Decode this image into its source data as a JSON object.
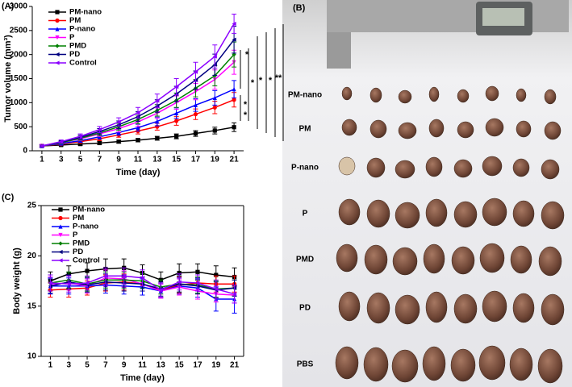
{
  "chart_data": [
    {
      "type": "line",
      "panel_label": "(A)",
      "xlabel": "Time (day)",
      "ylabel": "Tumor volume (mm³)",
      "x": [
        1,
        3,
        5,
        7,
        9,
        11,
        13,
        15,
        17,
        19,
        21
      ],
      "xlim": [
        0,
        22
      ],
      "xticks": [
        1,
        3,
        5,
        7,
        9,
        11,
        13,
        15,
        17,
        19,
        21
      ],
      "ylim": [
        0,
        3000
      ],
      "yticks": [
        0,
        500,
        1000,
        1500,
        2000,
        2500,
        3000
      ],
      "legend": "upper left",
      "series": [
        {
          "name": "PM-nano",
          "color": "#000000",
          "marker": "square",
          "values": [
            100,
            120,
            140,
            160,
            190,
            220,
            260,
            300,
            360,
            420,
            490
          ],
          "errors": [
            20,
            20,
            25,
            30,
            30,
            35,
            40,
            50,
            60,
            70,
            90
          ]
        },
        {
          "name": "PM",
          "color": "#ff0000",
          "marker": "circle",
          "values": [
            100,
            140,
            190,
            250,
            330,
            410,
            500,
            620,
            760,
            900,
            1060
          ],
          "errors": [
            20,
            25,
            30,
            40,
            50,
            60,
            70,
            90,
            110,
            130,
            150
          ]
        },
        {
          "name": "P-nano",
          "color": "#0000ff",
          "marker": "triangle-up",
          "values": [
            100,
            150,
            210,
            290,
            380,
            480,
            610,
            780,
            950,
            1100,
            1280
          ],
          "errors": [
            20,
            25,
            35,
            45,
            55,
            70,
            90,
            110,
            130,
            150,
            180
          ]
        },
        {
          "name": "P",
          "color": "#ff00ff",
          "marker": "triangle-down",
          "values": [
            100,
            170,
            250,
            350,
            460,
            600,
            780,
            1000,
            1230,
            1480,
            1840
          ],
          "errors": [
            20,
            30,
            40,
            55,
            70,
            90,
            110,
            140,
            170,
            200,
            250
          ]
        },
        {
          "name": "PMD",
          "color": "#008000",
          "marker": "diamond",
          "values": [
            100,
            170,
            260,
            370,
            500,
            650,
            840,
            1050,
            1300,
            1560,
            2000
          ],
          "errors": [
            20,
            30,
            40,
            55,
            70,
            90,
            120,
            150,
            180,
            210,
            260
          ]
        },
        {
          "name": "PD",
          "color": "#000080",
          "marker": "triangle-left",
          "values": [
            100,
            180,
            280,
            400,
            540,
            710,
            930,
            1180,
            1470,
            1790,
            2310
          ],
          "errors": [
            20,
            30,
            45,
            60,
            80,
            100,
            130,
            160,
            190,
            220,
            280
          ]
        },
        {
          "name": "Control",
          "color": "#8b00ff",
          "marker": "triangle-left",
          "values": [
            100,
            190,
            300,
            440,
            600,
            790,
            1040,
            1330,
            1640,
            1960,
            2640
          ],
          "errors": [
            20,
            35,
            50,
            65,
            85,
            110,
            140,
            170,
            200,
            240,
            200
          ]
        }
      ],
      "annotations": [
        "*",
        "*",
        "*",
        "*",
        "*",
        "*",
        "**"
      ]
    },
    {
      "type": "line",
      "panel_label": "(C)",
      "xlabel": "Time (day)",
      "ylabel": "Body weight (g)",
      "x": [
        1,
        3,
        5,
        7,
        9,
        11,
        13,
        15,
        17,
        19,
        21
      ],
      "xlim": [
        0,
        22
      ],
      "xticks": [
        1,
        3,
        5,
        7,
        9,
        11,
        13,
        15,
        17,
        19,
        21
      ],
      "ylim": [
        10,
        25
      ],
      "yticks": [
        10,
        15,
        20,
        25
      ],
      "legend": "upper left",
      "series": [
        {
          "name": "PM-nano",
          "color": "#000000",
          "marker": "square",
          "values": [
            17.5,
            18.2,
            18.5,
            18.7,
            18.8,
            18.3,
            17.6,
            18.3,
            18.4,
            18.1,
            17.9
          ],
          "errors": [
            0.9,
            0.8,
            0.8,
            1.0,
            0.9,
            0.8,
            0.8,
            0.9,
            0.8,
            0.9,
            0.9
          ]
        },
        {
          "name": "PM",
          "color": "#ff0000",
          "marker": "circle",
          "values": [
            16.6,
            16.7,
            16.8,
            17.3,
            17.4,
            17.2,
            16.6,
            17.1,
            17.3,
            17.2,
            17.2
          ],
          "errors": [
            0.7,
            0.8,
            0.7,
            0.8,
            0.8,
            0.7,
            0.7,
            0.8,
            0.8,
            0.8,
            0.8
          ]
        },
        {
          "name": "P-nano",
          "color": "#0000ff",
          "marker": "triangle-up",
          "values": [
            17.0,
            17.0,
            17.0,
            17.1,
            17.0,
            16.9,
            16.5,
            17.0,
            16.8,
            15.7,
            15.7
          ],
          "errors": [
            0.8,
            0.8,
            0.7,
            0.8,
            0.8,
            0.8,
            0.7,
            0.8,
            0.9,
            1.2,
            1.4
          ]
        },
        {
          "name": "P",
          "color": "#ff00ff",
          "marker": "triangle-down",
          "values": [
            17.2,
            17.3,
            17.0,
            17.8,
            17.7,
            17.2,
            16.5,
            16.9,
            16.5,
            16.2,
            16.1
          ],
          "errors": [
            0.7,
            0.7,
            0.7,
            0.8,
            0.8,
            0.7,
            0.7,
            0.8,
            0.8,
            0.8,
            0.8
          ]
        },
        {
          "name": "PMD",
          "color": "#008000",
          "marker": "diamond",
          "values": [
            17.3,
            17.6,
            17.2,
            17.6,
            17.6,
            17.5,
            16.9,
            17.2,
            17.1,
            16.7,
            16.8
          ],
          "errors": [
            0.8,
            0.8,
            0.7,
            0.8,
            0.8,
            0.7,
            0.7,
            0.8,
            0.8,
            0.8,
            0.8
          ]
        },
        {
          "name": "PD",
          "color": "#000080",
          "marker": "triangle-left",
          "values": [
            17.0,
            17.4,
            17.1,
            17.4,
            17.3,
            17.2,
            16.7,
            17.2,
            17.0,
            16.6,
            16.8
          ],
          "errors": [
            0.7,
            0.7,
            0.7,
            0.8,
            0.8,
            0.7,
            0.7,
            0.8,
            0.8,
            0.8,
            0.8
          ]
        },
        {
          "name": "Control",
          "color": "#8b00ff",
          "marker": "triangle-left",
          "values": [
            17.3,
            17.2,
            17.3,
            18.0,
            18.0,
            17.8,
            16.6,
            17.4,
            17.3,
            16.7,
            16.2
          ],
          "errors": [
            0.8,
            0.8,
            0.7,
            0.8,
            0.8,
            0.8,
            0.7,
            0.8,
            0.8,
            0.9,
            0.9
          ]
        }
      ]
    }
  ],
  "photo_panel": {
    "panel_label": "(B)",
    "row_labels": [
      "PM-nano",
      "PM",
      "P-nano",
      "P",
      "PMD",
      "PD",
      "PBS"
    ]
  }
}
